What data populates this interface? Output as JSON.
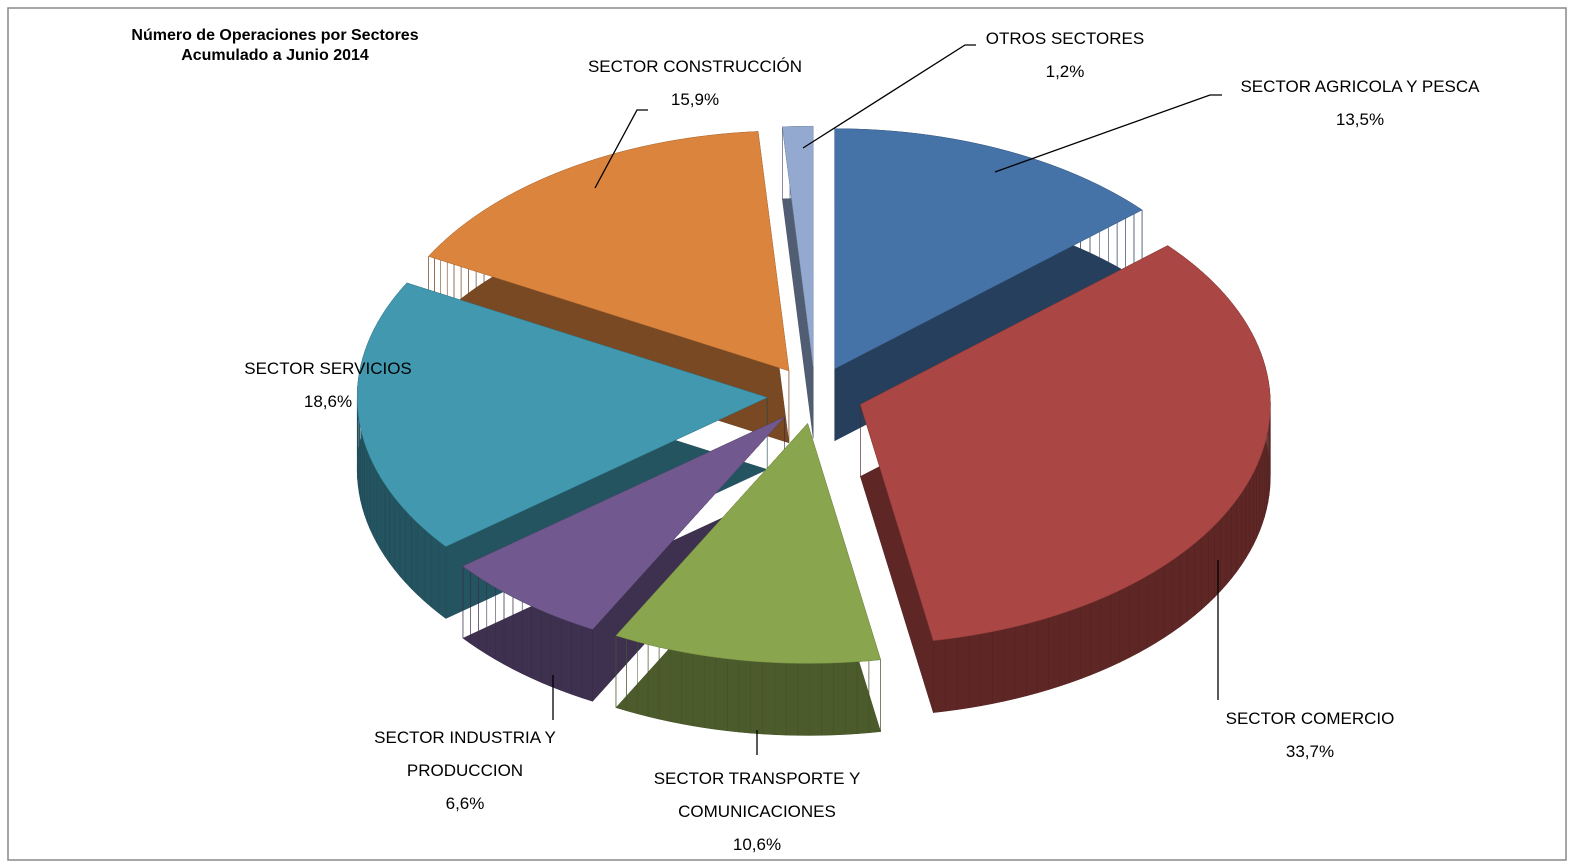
{
  "chart_data": {
    "type": "pie3d",
    "title": "Número de Operaciones por Sectores",
    "subtitle": "Acumulado a Junio 2014",
    "categories": [
      "SECTOR AGRICOLA Y PESCA",
      "SECTOR COMERCIO",
      "SECTOR TRANSPORTE Y COMUNICACIONES",
      "SECTOR INDUSTRIA Y PRODUCCION",
      "SECTOR SERVICIOS",
      "SECTOR CONSTRUCCIÓN",
      "OTROS SECTORES"
    ],
    "values": [
      13.5,
      33.7,
      10.6,
      6.6,
      18.6,
      15.9,
      1.2
    ],
    "value_labels": [
      "13,5%",
      "33,7%",
      "10,6%",
      "6,6%",
      "18,6%",
      "15,9%",
      "1,2%"
    ],
    "colors": [
      "#4572a7",
      "#aa4643",
      "#89a54e",
      "#71588f",
      "#4198af",
      "#db843d",
      "#93a9cf"
    ]
  }
}
